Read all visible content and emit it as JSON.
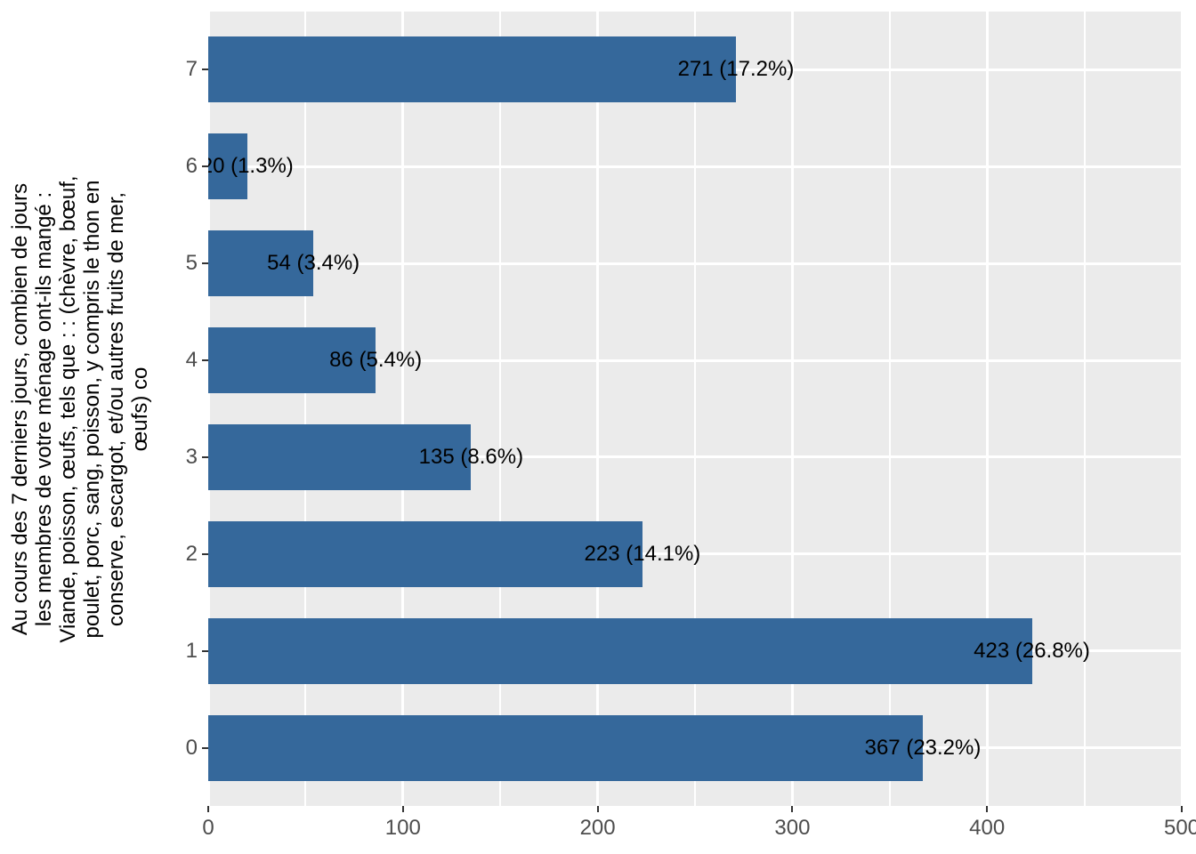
{
  "chart_data": {
    "type": "bar",
    "orientation": "horizontal",
    "title": "",
    "xlabel": "",
    "ylabel_lines": [
      "Au cours des 7 derniers jours, combien de jours",
      "les membres de votre ménage ont-ils mangé :",
      "Viande, poisson, œufs, tels que : : (chèvre, bœuf,",
      "poulet, porc, sang, poisson, y compris le thon en",
      "conserve, escargot, et/ou autres fruits de mer,",
      "œufs) co"
    ],
    "categories_top_to_bottom": [
      "7",
      "6",
      "5",
      "4",
      "3",
      "2",
      "1",
      "0"
    ],
    "values": [
      271,
      20,
      54,
      86,
      135,
      223,
      423,
      367
    ],
    "bar_labels": [
      "271 (17.2%)",
      "20 (1.3%)",
      "54 (3.4%)",
      "86 (5.4%)",
      "135 (8.6%)",
      "223 (14.1%)",
      "423 (26.8%)",
      "367 (23.2%)"
    ],
    "xlim": [
      0,
      500
    ],
    "x_major_ticks": [
      0,
      100,
      200,
      300,
      400,
      500
    ],
    "x_minor_ticks": [
      50,
      150,
      250,
      350,
      450
    ],
    "grid": true,
    "legend": "none",
    "colors": {
      "bar_fill": "#35689B",
      "panel_background": "#EBEBEB",
      "gridline": "#FFFFFF",
      "tick_text": "#4D4D4D",
      "bar_label_text": "#000000",
      "axis_title_text": "#000000",
      "tick_mark": "#333333"
    }
  }
}
